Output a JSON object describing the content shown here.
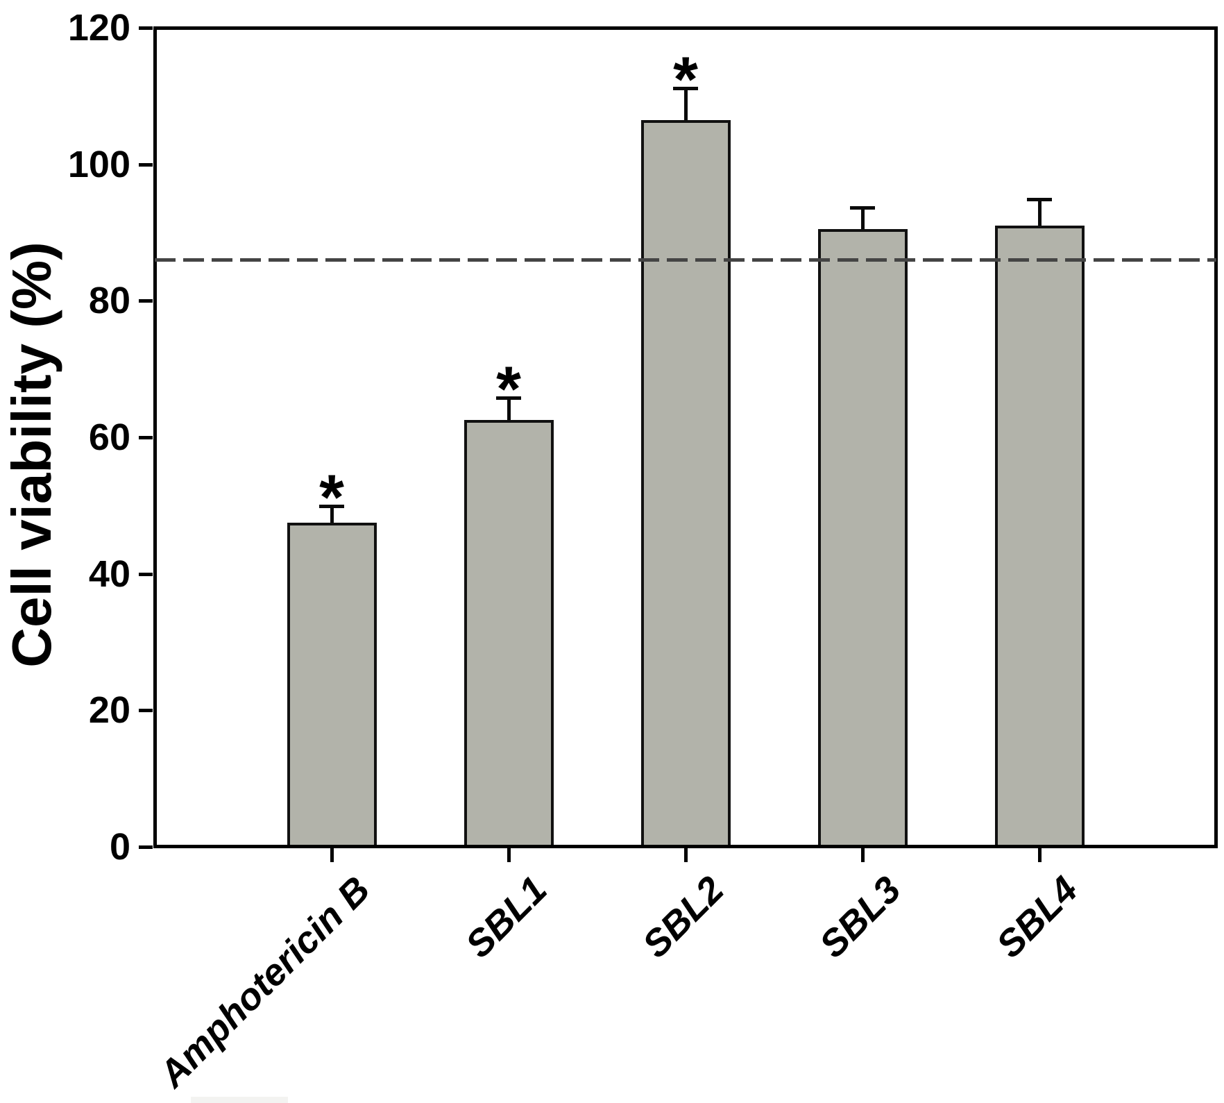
{
  "figure": {
    "background": "#ffffff"
  },
  "chart_data": {
    "type": "bar",
    "title": "",
    "xlabel": "",
    "ylabel": "Cell viability (%)",
    "categories": [
      "Amphotericin B",
      "SBL1",
      "SBL2",
      "SBL3",
      "SBL4"
    ],
    "values": [
      47.5,
      62.5,
      106.5,
      90.5,
      91.0
    ],
    "error_bars_upper": [
      2.4,
      3.3,
      4.7,
      3.2,
      3.9
    ],
    "significance_markers": [
      true,
      true,
      true,
      false,
      false
    ],
    "significance_symbol": "*",
    "reference_line_y": 86,
    "reference_line_style": "dashed",
    "ylim": [
      0,
      120
    ],
    "yticks": [
      0,
      20,
      40,
      60,
      80,
      100,
      120
    ],
    "grid": false,
    "legend": false,
    "bar_color": "#b2b3aa",
    "bar_edge_color": "#111111",
    "axis_color": "#000000",
    "reference_line_color": "#444444"
  }
}
